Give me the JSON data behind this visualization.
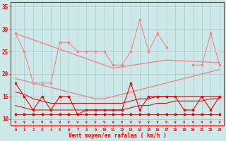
{
  "x": [
    0,
    1,
    2,
    3,
    4,
    5,
    6,
    7,
    8,
    9,
    10,
    11,
    12,
    13,
    14,
    15,
    16,
    17,
    18,
    19,
    20,
    21,
    22,
    23
  ],
  "rafales_series": [
    29,
    25,
    18,
    18,
    18,
    27,
    27,
    25,
    25,
    25,
    25,
    22,
    22,
    25,
    32,
    25,
    29,
    26,
    null,
    null,
    22,
    22,
    29,
    22
  ],
  "trend_rafales_upper": [
    29,
    28.3,
    27.6,
    26.9,
    26.2,
    25.5,
    24.8,
    24.1,
    23.4,
    22.7,
    22.0,
    21.3,
    21.6,
    21.9,
    22.2,
    22.5,
    22.8,
    23.1,
    23.0,
    22.9,
    22.8,
    22.7,
    22.6,
    22.5
  ],
  "trend_rafales_lower": [
    19,
    18.5,
    18.0,
    17.5,
    17.0,
    16.5,
    16.0,
    15.5,
    15.0,
    14.5,
    14.5,
    15.0,
    15.5,
    16.0,
    16.5,
    17.0,
    17.5,
    18.0,
    18.5,
    19.0,
    19.5,
    20.0,
    20.5,
    21.0
  ],
  "vent_moyen_series": [
    18,
    15,
    12,
    15,
    12,
    15,
    15,
    11,
    12,
    12,
    12,
    12,
    12,
    18,
    12,
    15,
    15,
    15,
    15,
    12,
    12,
    15,
    12,
    15
  ],
  "trend_vent_upper": [
    16,
    15.5,
    14.5,
    14.0,
    13.5,
    13.5,
    13.5,
    13.5,
    13.5,
    13.5,
    13.5,
    13.5,
    13.5,
    14.0,
    14.5,
    14.5,
    15.0,
    15.0,
    15.0,
    15.0,
    15.0,
    15.0,
    15.0,
    15.0
  ],
  "trend_vent_lower": [
    13,
    12.5,
    12.0,
    12.0,
    12.0,
    12.0,
    12.0,
    12.0,
    12.0,
    12.0,
    12.0,
    12.0,
    12.0,
    12.5,
    13.0,
    13.0,
    13.5,
    13.5,
    14.0,
    14.0,
    14.0,
    14.0,
    14.5,
    14.5
  ],
  "vent_min_series": [
    11,
    11,
    11,
    11,
    11,
    11,
    11,
    11,
    11,
    11,
    11,
    11,
    11,
    11,
    11,
    11,
    11,
    11,
    11,
    11,
    11,
    11,
    11,
    11
  ],
  "bg_color": "#cce8e8",
  "grid_color": "#aacccc",
  "color_light_pink": "#f08888",
  "color_salmon": "#e06060",
  "color_dark_red": "#cc0000",
  "color_red": "#ff0000",
  "xlabel": "Vent moyen/en rafales ( km/h )",
  "ylim": [
    8.5,
    36
  ],
  "yticks": [
    10,
    15,
    20,
    25,
    30,
    35
  ],
  "xlim": [
    -0.5,
    23.5
  ]
}
